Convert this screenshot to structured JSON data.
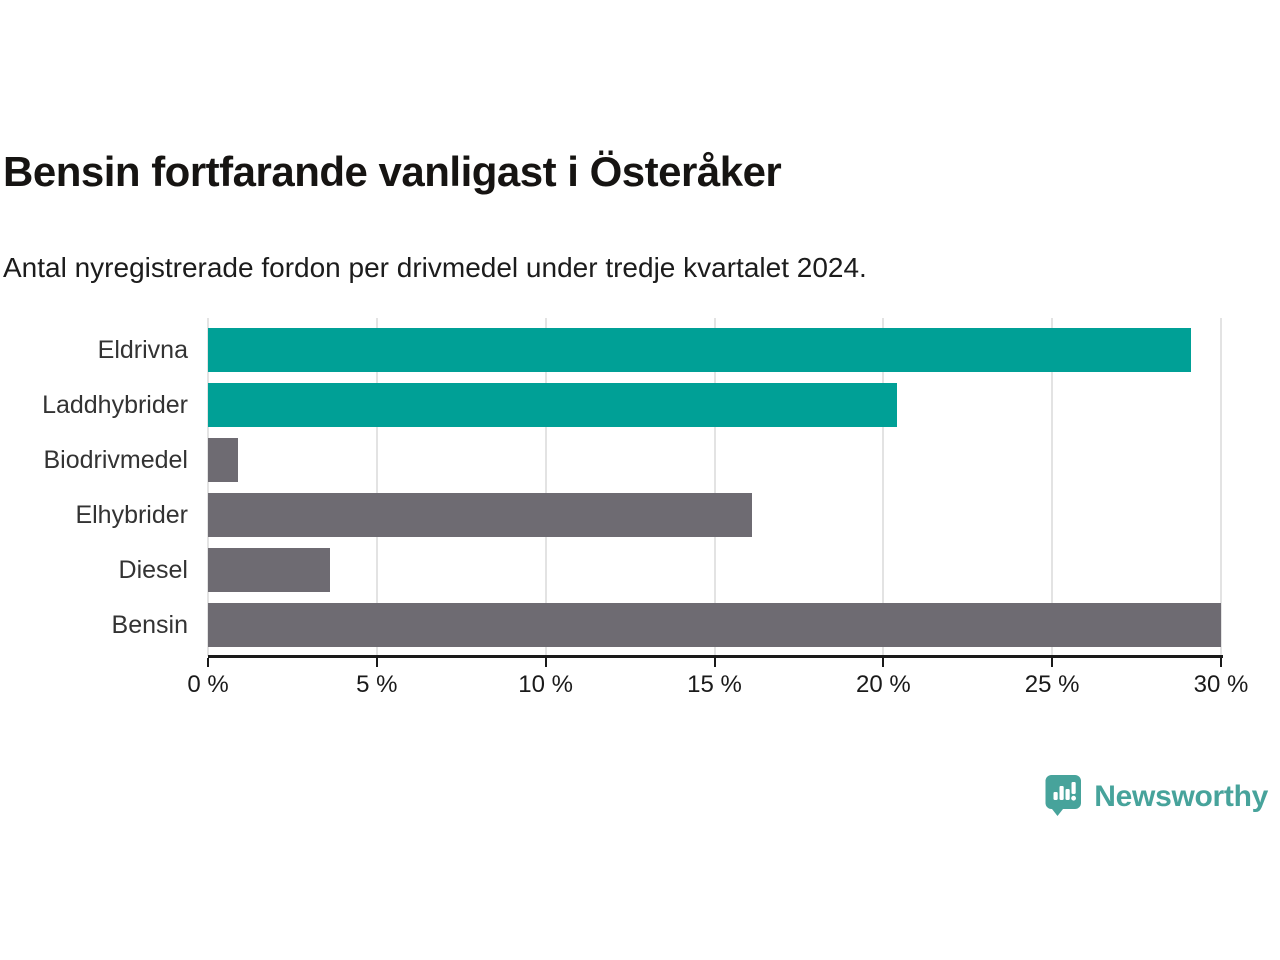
{
  "chart": {
    "title": "Bensin fortfarande vanligast i Österåker",
    "subtitle": "Antal nyregistrerade fordon per drivmedel under tredje kvartalet 2024."
  },
  "chart_data": {
    "type": "bar",
    "orientation": "horizontal",
    "title": "Bensin fortfarande vanligast i Österåker",
    "subtitle": "Antal nyregistrerade fordon per drivmedel under tredje kvartalet 2024.",
    "categories": [
      "Eldrivna",
      "Laddhybrider",
      "Biodrivmedel",
      "Elhybrider",
      "Diesel",
      "Bensin"
    ],
    "values": [
      29.1,
      20.4,
      0.9,
      16.1,
      3.6,
      30.0
    ],
    "bar_colors": [
      "#00A096",
      "#00A096",
      "#6E6B72",
      "#6E6B72",
      "#6E6B72",
      "#6E6B72"
    ],
    "xlabel": "",
    "ylabel": "",
    "xlim": [
      0,
      30
    ],
    "x_ticks": [
      0,
      5,
      10,
      15,
      20,
      25,
      30
    ],
    "x_tick_labels": [
      "0 %",
      "5 %",
      "10 %",
      "15 %",
      "20 %",
      "25 %",
      "30 %"
    ],
    "grid": "vertical",
    "gridline_color": "#e3e3e3",
    "axis_color": "#1a1a1a",
    "legend": "none"
  },
  "colors": {
    "accent_teal": "#00A096",
    "neutral_gray": "#6E6B72",
    "brand_teal": "#47A39B",
    "text_dark": "#161412"
  },
  "footer": {
    "brand": "Newsworthy"
  }
}
